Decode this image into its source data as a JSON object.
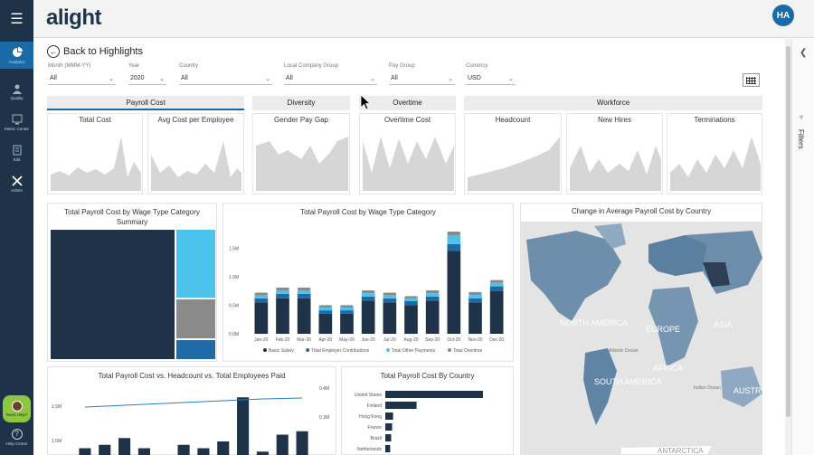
{
  "app": {
    "logo": "alight",
    "user_initials": "HA"
  },
  "rail": {
    "menu_icon": "hamburger-icon",
    "items": [
      {
        "label": "Analytics",
        "icon": "pie-chart-icon",
        "active": true
      },
      {
        "label": "Quality",
        "icon": "people-icon",
        "active": false
      },
      {
        "label": "Metric Center",
        "icon": "monitor-icon",
        "active": false
      },
      {
        "label": "Edit",
        "icon": "document-icon",
        "active": false
      },
      {
        "label": "Admin",
        "icon": "tools-icon",
        "active": false
      }
    ],
    "help_label": "Need Help?",
    "help_center_label": "Help Center"
  },
  "nav": {
    "back_label": "Back to Highlights"
  },
  "filters": [
    {
      "label": "Month (MMM-YY)",
      "value": "All"
    },
    {
      "label": "Year",
      "value": "2020"
    },
    {
      "label": "Country",
      "value": "All"
    },
    {
      "label": "Local Company Group",
      "value": "All"
    },
    {
      "label": "Pay Group",
      "value": "All"
    },
    {
      "label": "Currency",
      "value": "USD"
    }
  ],
  "filter_pane": {
    "label": "Filters"
  },
  "sections": {
    "payroll": "Payroll Cost",
    "diversity": "Diversity",
    "overtime": "Overtime",
    "workforce": "Workforce"
  },
  "kpis": {
    "total_cost": "Total Cost",
    "avg_cost": "Avg Cost per Employee",
    "gender_gap": "Gender Pay Gap",
    "overtime_cost": "Overtime Cost",
    "headcount": "Headcount",
    "new_hires": "New Hires",
    "terminations": "Terminations"
  },
  "panels": {
    "treemap_title": "Total Payroll Cost by Wage Type Category Summary",
    "bars_title": "Total Payroll Cost by Wage Type Category",
    "map_title": "Change in Average Payroll Cost by Country",
    "combo_title": "Total Payroll Cost vs. Headcount vs. Total Employees Paid",
    "country_title": "Total Payroll Cost By Country"
  },
  "map_labels": {
    "na": "NORTH AMERICA",
    "eu": "EUROPE",
    "asia": "ASIA",
    "af": "AFRICA",
    "sa": "SOUTH AMERICA",
    "au": "AUSTR",
    "atl": "Atlantic Ocean",
    "ind": "Indian Ocean",
    "ant": "ANTARCTICA"
  },
  "colors": {
    "navy": "#1e3348",
    "teal": "#2a9fd6",
    "light": "#5bc8ea",
    "grey": "#888888",
    "accent": "#1b6aa8"
  },
  "chart_data": [
    {
      "type": "bar",
      "title": "Total Payroll Cost by Wage Type Category",
      "categories": [
        "Jan-20",
        "Feb-20",
        "Mar-20",
        "Apr-20",
        "May-20",
        "Jun-20",
        "Jul-20",
        "Aug-20",
        "Sep-20",
        "Oct-20",
        "Nov-20",
        "Dec-20"
      ],
      "y_ticks": [
        "0.0M",
        "0.5M",
        "1.0M",
        "1.5M"
      ],
      "ylim": [
        0,
        1.9
      ],
      "series": [
        {
          "name": "Basic Salary",
          "values": [
            0.55,
            0.62,
            0.62,
            0.35,
            0.35,
            0.58,
            0.55,
            0.5,
            0.58,
            1.45,
            0.55,
            0.75
          ]
        },
        {
          "name": "Total Employer Contributions",
          "values": [
            0.07,
            0.08,
            0.08,
            0.06,
            0.06,
            0.07,
            0.07,
            0.07,
            0.07,
            0.12,
            0.07,
            0.08
          ]
        },
        {
          "name": "Total Other Payments",
          "values": [
            0.05,
            0.06,
            0.06,
            0.05,
            0.05,
            0.06,
            0.05,
            0.05,
            0.06,
            0.15,
            0.06,
            0.06
          ]
        },
        {
          "name": "Total Overtime",
          "values": [
            0.05,
            0.05,
            0.05,
            0.04,
            0.04,
            0.05,
            0.05,
            0.04,
            0.05,
            0.07,
            0.05,
            0.05
          ]
        }
      ],
      "legend": "bottom"
    },
    {
      "type": "bar",
      "title": "Total Payroll Cost By Country",
      "orientation": "horizontal",
      "categories": [
        "United States",
        "Finland",
        "Hong Kong",
        "France",
        "Brazil",
        "Netherlands"
      ],
      "values": [
        100,
        32,
        8,
        7,
        6,
        5
      ]
    },
    {
      "type": "bar",
      "title": "Total Payroll Cost vs. Headcount vs. Total Employees Paid",
      "y_ticks_left": [
        "1.5M",
        "1.0M"
      ],
      "y_ticks_right": [
        "0.4M",
        "0.3M"
      ],
      "values": [
        0.1,
        0.15,
        0.25,
        0.1,
        0,
        0.15,
        0.1,
        0.2,
        0.85,
        0.05,
        0.3,
        0.35
      ],
      "line": [
        0.62,
        0.64,
        0.66,
        0.68,
        0.7,
        0.72,
        0.74,
        0.76,
        0.78,
        0.8,
        0.81,
        0.82
      ]
    }
  ]
}
